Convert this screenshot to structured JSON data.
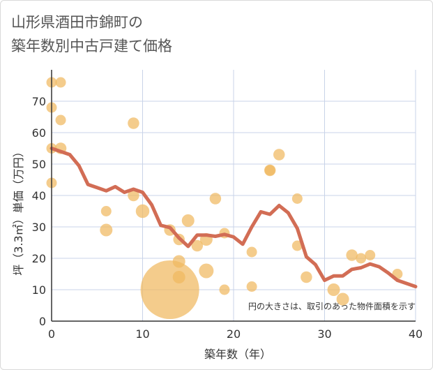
{
  "chart_data": {
    "type": "scatter",
    "title_line1": "山形県酒田市錦町の",
    "title_line2": "築年数別中古戸建て価格",
    "xlabel": "築年数（年）",
    "ylabel": "坪（3.3㎡）単価（万円）",
    "xlim": [
      0,
      40
    ],
    "ylim": [
      0,
      80
    ],
    "x_ticks": [
      0,
      10,
      20,
      30,
      40
    ],
    "y_ticks": [
      0,
      10,
      20,
      30,
      40,
      50,
      60,
      70
    ],
    "grid": true,
    "annotation": "円の大きさは、取引のあった物件面積を示す",
    "colors": {
      "scatter": "#f0b860",
      "line": "#d26d55",
      "grid": "#c8d3e8",
      "axis": "#333333"
    },
    "scatter_points": [
      {
        "x": 0,
        "y": 76,
        "size": 1
      },
      {
        "x": 1,
        "y": 76,
        "size": 1
      },
      {
        "x": 0,
        "y": 68,
        "size": 1
      },
      {
        "x": 1,
        "y": 64,
        "size": 1
      },
      {
        "x": 0,
        "y": 55,
        "size": 1
      },
      {
        "x": 1,
        "y": 55,
        "size": 1.1
      },
      {
        "x": 0,
        "y": 44,
        "size": 1
      },
      {
        "x": 6,
        "y": 35,
        "size": 1
      },
      {
        "x": 6,
        "y": 29,
        "size": 1.2
      },
      {
        "x": 9,
        "y": 63,
        "size": 1.1
      },
      {
        "x": 9,
        "y": 40,
        "size": 1.1
      },
      {
        "x": 10,
        "y": 35,
        "size": 1.3
      },
      {
        "x": 13,
        "y": 29,
        "size": 1.1
      },
      {
        "x": 13,
        "y": 10,
        "size": 5.6
      },
      {
        "x": 14,
        "y": 26,
        "size": 1.1
      },
      {
        "x": 14,
        "y": 19,
        "size": 1.2
      },
      {
        "x": 14,
        "y": 14,
        "size": 1.2
      },
      {
        "x": 15,
        "y": 32,
        "size": 1.2
      },
      {
        "x": 16,
        "y": 24,
        "size": 1.1
      },
      {
        "x": 17,
        "y": 26,
        "size": 1.2
      },
      {
        "x": 17,
        "y": 16,
        "size": 1.4
      },
      {
        "x": 18,
        "y": 39,
        "size": 1.1
      },
      {
        "x": 19,
        "y": 28,
        "size": 1
      },
      {
        "x": 19,
        "y": 10,
        "size": 1
      },
      {
        "x": 22,
        "y": 22,
        "size": 1
      },
      {
        "x": 22,
        "y": 11,
        "size": 1
      },
      {
        "x": 24,
        "y": 48,
        "size": 1.1
      },
      {
        "x": 24,
        "y": 48,
        "size": 1
      },
      {
        "x": 25,
        "y": 53,
        "size": 1.1
      },
      {
        "x": 27,
        "y": 39,
        "size": 1
      },
      {
        "x": 27,
        "y": 24,
        "size": 1
      },
      {
        "x": 28,
        "y": 14,
        "size": 1.1
      },
      {
        "x": 31,
        "y": 10,
        "size": 1.2
      },
      {
        "x": 32,
        "y": 7,
        "size": 1.2
      },
      {
        "x": 33,
        "y": 21,
        "size": 1.1
      },
      {
        "x": 34,
        "y": 20,
        "size": 1
      },
      {
        "x": 35,
        "y": 21,
        "size": 1
      },
      {
        "x": 38,
        "y": 15,
        "size": 1
      }
    ],
    "trend_line": [
      {
        "x": 0,
        "y": 55
      },
      {
        "x": 1,
        "y": 54
      },
      {
        "x": 2,
        "y": 53
      },
      {
        "x": 3,
        "y": 49.5
      },
      {
        "x": 4,
        "y": 43.5
      },
      {
        "x": 5,
        "y": 42.5
      },
      {
        "x": 6,
        "y": 41.5
      },
      {
        "x": 7,
        "y": 42.8
      },
      {
        "x": 8,
        "y": 41
      },
      {
        "x": 9,
        "y": 42
      },
      {
        "x": 10,
        "y": 41
      },
      {
        "x": 11,
        "y": 37
      },
      {
        "x": 12,
        "y": 30.5
      },
      {
        "x": 13,
        "y": 29.8
      },
      {
        "x": 14,
        "y": 26.5
      },
      {
        "x": 15,
        "y": 23.8
      },
      {
        "x": 16,
        "y": 27.4
      },
      {
        "x": 17,
        "y": 27.4
      },
      {
        "x": 18,
        "y": 27
      },
      {
        "x": 19,
        "y": 27.6
      },
      {
        "x": 20,
        "y": 26.8
      },
      {
        "x": 21,
        "y": 24.5
      },
      {
        "x": 22,
        "y": 30
      },
      {
        "x": 23,
        "y": 34.8
      },
      {
        "x": 24,
        "y": 34
      },
      {
        "x": 25,
        "y": 36.8
      },
      {
        "x": 26,
        "y": 34.5
      },
      {
        "x": 27,
        "y": 29.5
      },
      {
        "x": 28,
        "y": 20.5
      },
      {
        "x": 29,
        "y": 18
      },
      {
        "x": 30,
        "y": 13
      },
      {
        "x": 31,
        "y": 14.4
      },
      {
        "x": 32,
        "y": 14.4
      },
      {
        "x": 33,
        "y": 16.5
      },
      {
        "x": 34,
        "y": 17
      },
      {
        "x": 35,
        "y": 18.2
      },
      {
        "x": 36,
        "y": 17.3
      },
      {
        "x": 37,
        "y": 15.3
      },
      {
        "x": 38,
        "y": 13
      },
      {
        "x": 39,
        "y": 12
      },
      {
        "x": 40,
        "y": 11
      }
    ]
  }
}
